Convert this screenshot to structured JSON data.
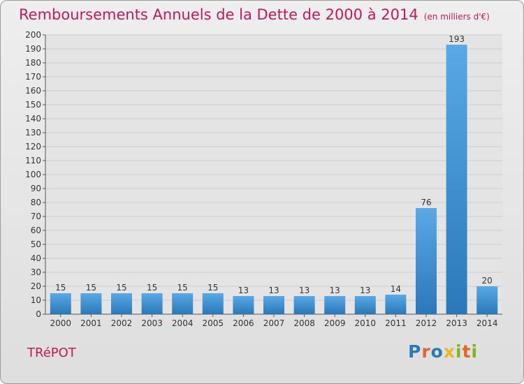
{
  "title": "Remboursements Annuels de la Dette de 2000 à 2014",
  "subtitle": "(en milliers d'€)",
  "commune": "TRéPOT",
  "brand": {
    "name": "Proxiti",
    "letter_colors": [
      "#2a7ab8",
      "#e8622a",
      "#2a7ab8",
      "#e8b820",
      "#7ab820",
      "#e8622a",
      "#7ab820"
    ]
  },
  "colors": {
    "title": "#c2185b",
    "bar_light": "#5aa9e6",
    "bar_dark": "#2a78b8"
  },
  "chart_data": {
    "type": "bar",
    "categories": [
      "2000",
      "2001",
      "2002",
      "2003",
      "2004",
      "2005",
      "2006",
      "2007",
      "2008",
      "2009",
      "2010",
      "2011",
      "2012",
      "2013",
      "2014"
    ],
    "values": [
      15,
      15,
      15,
      15,
      15,
      15,
      13,
      13,
      13,
      13,
      13,
      14,
      76,
      193,
      20
    ],
    "ylim": [
      0,
      200
    ],
    "ytick_step": 10,
    "grid": true,
    "xlabel": "",
    "ylabel": ""
  }
}
